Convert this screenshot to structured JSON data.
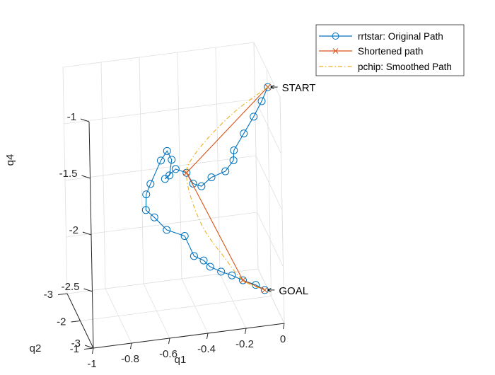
{
  "chart_data": {
    "type": "line",
    "view": "3d",
    "xlabel": "q1",
    "ylabel": "q2",
    "zlabel": "q4",
    "xlim": [
      -1,
      0
    ],
    "ylim": [
      -3,
      -1
    ],
    "zlim": [
      -3,
      -1
    ],
    "xticks": [
      -1,
      -0.8,
      -0.6,
      -0.4,
      -0.2,
      0
    ],
    "yticks": [
      -3,
      -2,
      -1
    ],
    "zticks": [
      -3,
      -2.5,
      -2,
      -1.5,
      -1
    ],
    "xtick_labels": [
      "-1",
      "-0.8",
      "-0.6",
      "-0.4",
      "-0.2",
      "0"
    ],
    "ytick_labels": [
      "-3",
      "-2",
      "-1"
    ],
    "ztick_labels": [
      "-3",
      "-2.5",
      "-2",
      "-1.5",
      "-1"
    ],
    "grid": true,
    "box": true,
    "legend_position": "top-right",
    "colors": {
      "original": "#0072BD",
      "shortened": "#D95319",
      "smoothed": "#EDB120",
      "axis": "#262626",
      "grid": "#DFDFDF"
    },
    "annotations": [
      {
        "text": "START",
        "point": "start"
      },
      {
        "text": "GOAL",
        "point": "goal"
      }
    ],
    "series": [
      {
        "name": "rrtstar: Original Path",
        "style": "line-circle",
        "points": [
          [
            -0.05,
            -1.2,
            -0.95
          ],
          [
            -0.08,
            -1.25,
            -1.08
          ],
          [
            -0.12,
            -1.3,
            -1.22
          ],
          [
            -0.17,
            -1.35,
            -1.37
          ],
          [
            -0.22,
            -1.4,
            -1.52
          ],
          [
            -0.22,
            -1.45,
            -1.62
          ],
          [
            -0.26,
            -1.5,
            -1.72
          ],
          [
            -0.33,
            -1.55,
            -1.77
          ],
          [
            -0.38,
            -1.6,
            -1.85
          ],
          [
            -0.42,
            -1.65,
            -1.83
          ],
          [
            -0.45,
            -1.7,
            -1.74
          ],
          [
            -0.5,
            -1.8,
            -1.72
          ],
          [
            -0.55,
            -1.9,
            -1.82
          ],
          [
            -0.52,
            -2.0,
            -1.82
          ],
          [
            -0.5,
            -2.1,
            -1.71
          ],
          [
            -0.52,
            -2.15,
            -1.64
          ],
          [
            -0.55,
            -2.2,
            -1.73
          ],
          [
            -0.6,
            -2.3,
            -1.95
          ],
          [
            -0.62,
            -2.35,
            -2.05
          ],
          [
            -0.62,
            -2.4,
            -2.2
          ],
          [
            -0.57,
            -2.5,
            -2.3
          ],
          [
            -0.5,
            -2.6,
            -2.45
          ],
          [
            -0.4,
            -2.7,
            -2.55
          ],
          [
            -0.35,
            -2.75,
            -2.75
          ],
          [
            -0.3,
            -2.75,
            -2.8
          ],
          [
            -0.27,
            -2.7,
            -2.85
          ],
          [
            -0.22,
            -2.6,
            -2.88
          ],
          [
            -0.17,
            -2.5,
            -2.9
          ],
          [
            -0.12,
            -2.4,
            -2.93
          ],
          [
            -0.06,
            -2.3,
            -2.96
          ],
          [
            -0.02,
            -2.2,
            -2.99
          ]
        ]
      },
      {
        "name": "Shortened path",
        "style": "line-x",
        "points": [
          [
            -0.05,
            -1.2,
            -0.95
          ],
          [
            -0.45,
            -1.7,
            -1.74
          ],
          [
            -0.12,
            -2.4,
            -2.93
          ],
          [
            -0.02,
            -2.2,
            -2.99
          ]
        ]
      },
      {
        "name": "pchip: Smoothed Path",
        "style": "dash-dot",
        "points": [
          [
            -0.05,
            -1.2,
            -0.95
          ],
          [
            -0.2,
            -1.35,
            -1.15
          ],
          [
            -0.33,
            -1.5,
            -1.38
          ],
          [
            -0.42,
            -1.65,
            -1.6
          ],
          [
            -0.45,
            -1.7,
            -1.74
          ],
          [
            -0.42,
            -1.85,
            -2.0
          ],
          [
            -0.34,
            -2.05,
            -2.35
          ],
          [
            -0.22,
            -2.25,
            -2.68
          ],
          [
            -0.12,
            -2.4,
            -2.93
          ],
          [
            -0.02,
            -2.2,
            -2.99
          ]
        ]
      }
    ]
  }
}
